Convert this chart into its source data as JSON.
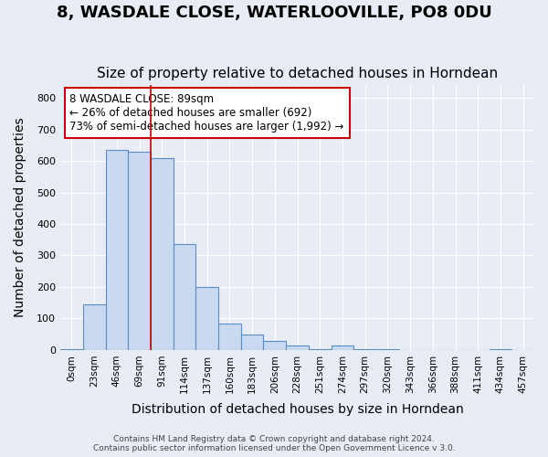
{
  "title": "8, WASDALE CLOSE, WATERLOOVILLE, PO8 0DU",
  "subtitle": "Size of property relative to detached houses in Horndean",
  "xlabel": "Distribution of detached houses by size in Horndean",
  "ylabel": "Number of detached properties",
  "bin_labels": [
    "0sqm",
    "23sqm",
    "46sqm",
    "69sqm",
    "91sqm",
    "114sqm",
    "137sqm",
    "160sqm",
    "183sqm",
    "206sqm",
    "228sqm",
    "251sqm",
    "274sqm",
    "297sqm",
    "320sqm",
    "343sqm",
    "366sqm",
    "388sqm",
    "411sqm",
    "434sqm",
    "457sqm"
  ],
  "bar_heights": [
    3,
    145,
    635,
    630,
    610,
    335,
    200,
    85,
    48,
    28,
    13,
    3,
    13,
    3,
    3,
    0,
    0,
    0,
    0,
    3,
    0
  ],
  "bar_color": "#c8d9f0",
  "bar_edge_color": "#5b8ec4",
  "vline_x": 4,
  "vline_color": "#cc0000",
  "annotation_text": "8 WASDALE CLOSE: 89sqm\n← 26% of detached houses are smaller (692)\n73% of semi-detached houses are larger (1,992) →",
  "annotation_box_color": "#ffffff",
  "annotation_box_edge": "#cc0000",
  "ylim": [
    0,
    840
  ],
  "yticks": [
    0,
    100,
    200,
    300,
    400,
    500,
    600,
    700,
    800
  ],
  "background_color": "#e8edf5",
  "footnote": "Contains HM Land Registry data © Crown copyright and database right 2024.\nContains public sector information licensed under the Open Government Licence v 3.0.",
  "title_fontsize": 13,
  "subtitle_fontsize": 11,
  "xlabel_fontsize": 10,
  "ylabel_fontsize": 10
}
